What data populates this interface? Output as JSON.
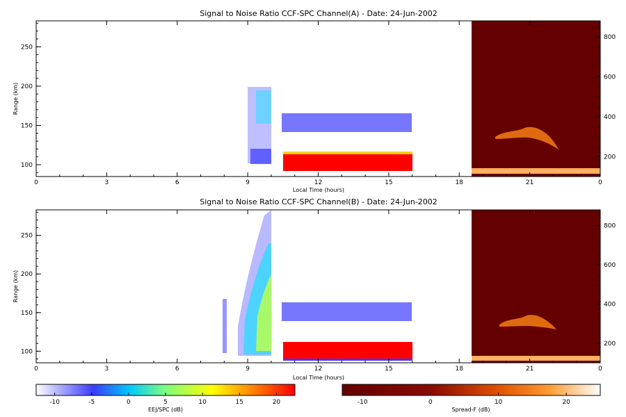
{
  "chart_data": [
    {
      "type": "heatmap",
      "title": "Signal to Noise Ratio CCF-SPC Channel(A) - Date: 24-Jun-2002",
      "xlabel": "Local Time (hours)",
      "ylabel": "Range (km)",
      "xlim": [
        0,
        24
      ],
      "ylim": [
        85,
        283
      ],
      "xticks": [
        "0",
        "3",
        "6",
        "9",
        "12",
        "15",
        "18",
        "21",
        "0"
      ],
      "yticks": [
        100,
        150,
        200,
        250
      ],
      "right_ylim": [
        100,
        880
      ],
      "right_yticks": [
        200,
        400,
        600,
        800
      ],
      "ejspc_regions": [
        {
          "t": [
            8.7,
            9.95
          ],
          "r": [
            95,
            200
          ],
          "level": -8
        },
        {
          "t": [
            9.4,
            9.95
          ],
          "r": [
            155,
            195
          ],
          "level": -2
        },
        {
          "t": [
            10.5,
            15.9
          ],
          "r": [
            128,
            162
          ],
          "level": -7
        },
        {
          "t": [
            10.5,
            15.9
          ],
          "r": [
            90,
            114
          ],
          "level": 22
        }
      ],
      "spreadf_block": {
        "t": [
          18.5,
          24
        ],
        "level": -12
      }
    },
    {
      "type": "heatmap",
      "title": "Signal to Noise Ratio CCF-SPC Channel(B) - Date: 24-Jun-2002",
      "xlabel": "Local Time (hours)",
      "ylabel": "Range (km)",
      "xlim": [
        0,
        24
      ],
      "ylim": [
        85,
        283
      ],
      "xticks": [
        "0",
        "3",
        "6",
        "9",
        "12",
        "15",
        "18",
        "21",
        "0"
      ],
      "yticks": [
        100,
        150,
        200,
        250
      ],
      "right_ylim": [
        100,
        880
      ],
      "right_yticks": [
        200,
        400,
        600,
        800
      ],
      "ejspc_regions": [
        {
          "t": [
            8.5,
            9.95
          ],
          "r": [
            95,
            283
          ],
          "level": -6
        },
        {
          "t": [
            9.2,
            9.95
          ],
          "r": [
            95,
            200
          ],
          "level": 8
        },
        {
          "t": [
            10.5,
            15.9
          ],
          "r": [
            130,
            162
          ],
          "level": -7
        },
        {
          "t": [
            10.5,
            15.9
          ],
          "r": [
            92,
            114
          ],
          "level": 22
        }
      ],
      "spreadf_block": {
        "t": [
          18.5,
          24
        ],
        "level": -12
      }
    }
  ],
  "colorbars": [
    {
      "label": "EEJ/SPC (dB)",
      "ticks": [
        "-10",
        "-5",
        "0",
        "5",
        "10",
        "15",
        "20"
      ],
      "range": [
        -12.5,
        22.5
      ],
      "stops": [
        "#ffffff",
        "#3b3bff",
        "#00c8ff",
        "#7dff7d",
        "#ffff00",
        "#ff8000",
        "#ff0000"
      ]
    },
    {
      "label": "Spread-F (dB)",
      "ticks": [
        "-10",
        "0",
        "10",
        "20"
      ],
      "range": [
        -13,
        25
      ],
      "stops": [
        "#640000",
        "#a01400",
        "#e05000",
        "#ff9a30",
        "#ffd890",
        "#ffffff"
      ]
    }
  ]
}
